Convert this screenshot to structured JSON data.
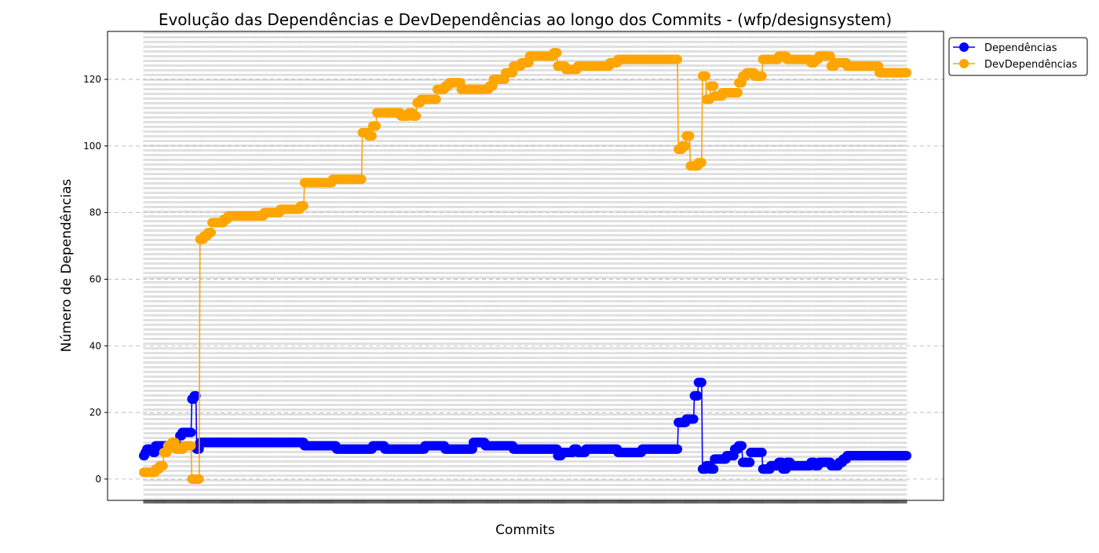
{
  "chart_data": {
    "type": "line",
    "title": "Evolução das Dependências e DevDependências ao longo dos Commits - (wfp/designsystem)",
    "xlabel": "Commits",
    "ylabel": "Número de Dependências",
    "ylim": [
      -6.4,
      134.4
    ],
    "yticks": [
      0,
      20,
      40,
      60,
      80,
      100,
      120
    ],
    "grid": "on (dashed)",
    "legend_position": "outside top-right",
    "x_tick_labels": "commit hashes (overlapping, illegible)",
    "num_commits": 950,
    "series": [
      {
        "name": "Dependências",
        "color": "#0000ff",
        "steps": [
          [
            0,
            7
          ],
          [
            2,
            8
          ],
          [
            4,
            9
          ],
          [
            12,
            8
          ],
          [
            15,
            10
          ],
          [
            25,
            10
          ],
          [
            45,
            13
          ],
          [
            48,
            14
          ],
          [
            60,
            24
          ],
          [
            63,
            25
          ],
          [
            66,
            9
          ],
          [
            70,
            11
          ],
          [
            200,
            10
          ],
          [
            240,
            9
          ],
          [
            285,
            10
          ],
          [
            300,
            9
          ],
          [
            350,
            10
          ],
          [
            375,
            9
          ],
          [
            410,
            11
          ],
          [
            425,
            10
          ],
          [
            460,
            9
          ],
          [
            515,
            7
          ],
          [
            520,
            8
          ],
          [
            535,
            9
          ],
          [
            540,
            8
          ],
          [
            550,
            9
          ],
          [
            590,
            8
          ],
          [
            620,
            9
          ],
          [
            665,
            17
          ],
          [
            675,
            18
          ],
          [
            685,
            25
          ],
          [
            690,
            29
          ],
          [
            695,
            3
          ],
          [
            700,
            4
          ],
          [
            705,
            3
          ],
          [
            710,
            6
          ],
          [
            725,
            7
          ],
          [
            735,
            9
          ],
          [
            740,
            10
          ],
          [
            745,
            5
          ],
          [
            755,
            8
          ],
          [
            765,
            8
          ],
          [
            770,
            3
          ],
          [
            780,
            4
          ],
          [
            790,
            5
          ],
          [
            795,
            3
          ],
          [
            800,
            5
          ],
          [
            805,
            4
          ],
          [
            830,
            5
          ],
          [
            835,
            4
          ],
          [
            840,
            5
          ],
          [
            855,
            4
          ],
          [
            865,
            5
          ],
          [
            870,
            6
          ],
          [
            875,
            7
          ],
          [
            950,
            7
          ]
        ]
      },
      {
        "name": "DevDependências",
        "color": "#ffa500",
        "steps": [
          [
            0,
            2
          ],
          [
            10,
            2
          ],
          [
            15,
            3
          ],
          [
            20,
            4
          ],
          [
            25,
            8
          ],
          [
            30,
            10
          ],
          [
            35,
            11
          ],
          [
            40,
            9
          ],
          [
            50,
            10
          ],
          [
            60,
            0
          ],
          [
            70,
            72
          ],
          [
            75,
            73
          ],
          [
            80,
            74
          ],
          [
            85,
            77
          ],
          [
            100,
            78
          ],
          [
            105,
            79
          ],
          [
            150,
            80
          ],
          [
            170,
            81
          ],
          [
            195,
            82
          ],
          [
            200,
            89
          ],
          [
            235,
            90
          ],
          [
            270,
            90
          ],
          [
            272,
            104
          ],
          [
            280,
            103
          ],
          [
            285,
            106
          ],
          [
            290,
            110
          ],
          [
            320,
            109
          ],
          [
            330,
            110
          ],
          [
            335,
            109
          ],
          [
            340,
            113
          ],
          [
            345,
            114
          ],
          [
            365,
            117
          ],
          [
            375,
            118
          ],
          [
            380,
            119
          ],
          [
            395,
            117
          ],
          [
            430,
            118
          ],
          [
            435,
            120
          ],
          [
            450,
            122
          ],
          [
            460,
            124
          ],
          [
            470,
            125
          ],
          [
            480,
            127
          ],
          [
            510,
            128
          ],
          [
            515,
            124
          ],
          [
            525,
            123
          ],
          [
            540,
            124
          ],
          [
            580,
            125
          ],
          [
            590,
            126
          ],
          [
            660,
            126
          ],
          [
            665,
            99
          ],
          [
            670,
            100
          ],
          [
            675,
            103
          ],
          [
            680,
            94
          ],
          [
            690,
            95
          ],
          [
            695,
            121
          ],
          [
            700,
            114
          ],
          [
            705,
            118
          ],
          [
            710,
            115
          ],
          [
            720,
            116
          ],
          [
            740,
            119
          ],
          [
            745,
            121
          ],
          [
            750,
            122
          ],
          [
            760,
            121
          ],
          [
            770,
            126
          ],
          [
            790,
            127
          ],
          [
            800,
            126
          ],
          [
            830,
            125
          ],
          [
            835,
            126
          ],
          [
            840,
            127
          ],
          [
            855,
            124
          ],
          [
            860,
            125
          ],
          [
            875,
            124
          ],
          [
            910,
            124
          ],
          [
            915,
            122
          ],
          [
            950,
            122
          ]
        ]
      }
    ]
  }
}
